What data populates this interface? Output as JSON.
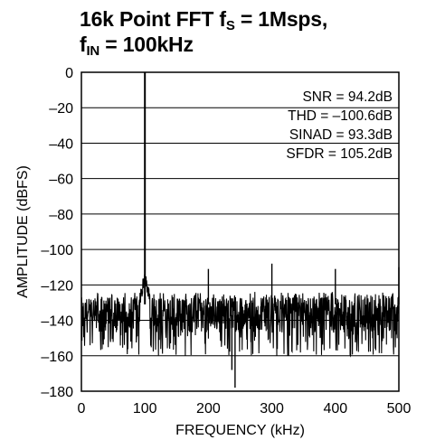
{
  "chart_data": {
    "type": "line",
    "title_parts": {
      "line1": "16k Point FFT f",
      "line1_sub": "S",
      "line1_rest": " = 1Msps,",
      "line2": "f",
      "line2_sub": "IN",
      "line2_rest": " = 100kHz"
    },
    "xlabel": "FREQUENCY (kHz)",
    "ylabel": "AMPLITUDE (dBFS)",
    "xlim": [
      0,
      500
    ],
    "ylim": [
      -180,
      0
    ],
    "xticks": [
      0,
      100,
      200,
      300,
      400,
      500
    ],
    "yticks": [
      0,
      -20,
      -40,
      -60,
      -80,
      -100,
      -120,
      -140,
      -160,
      -180
    ],
    "xtick_labels": [
      "0",
      "100",
      "200",
      "300",
      "400",
      "500"
    ],
    "ytick_labels": [
      "0",
      "–20",
      "–40",
      "–60",
      "–80",
      "–100",
      "–120",
      "–140",
      "–160",
      "–180"
    ],
    "grid": "horizontal",
    "annotations": [
      "SNR = 94.2dB",
      "THD = –100.6dB",
      "SINAD = 93.3dB",
      "SFDR = 105.2dB"
    ],
    "series": [
      {
        "noise_floor": -137,
        "noise_span": [
          -160,
          -124
        ],
        "spikes": [
          {
            "x": 100,
            "y": 0
          },
          {
            "x": 200,
            "y": -111
          },
          {
            "x": 300,
            "y": -108
          },
          {
            "x": 400,
            "y": -111
          },
          {
            "x": 500,
            "y": -110
          },
          {
            "x": 237,
            "y": -168
          },
          {
            "x": 242,
            "y": -178
          }
        ]
      }
    ]
  }
}
